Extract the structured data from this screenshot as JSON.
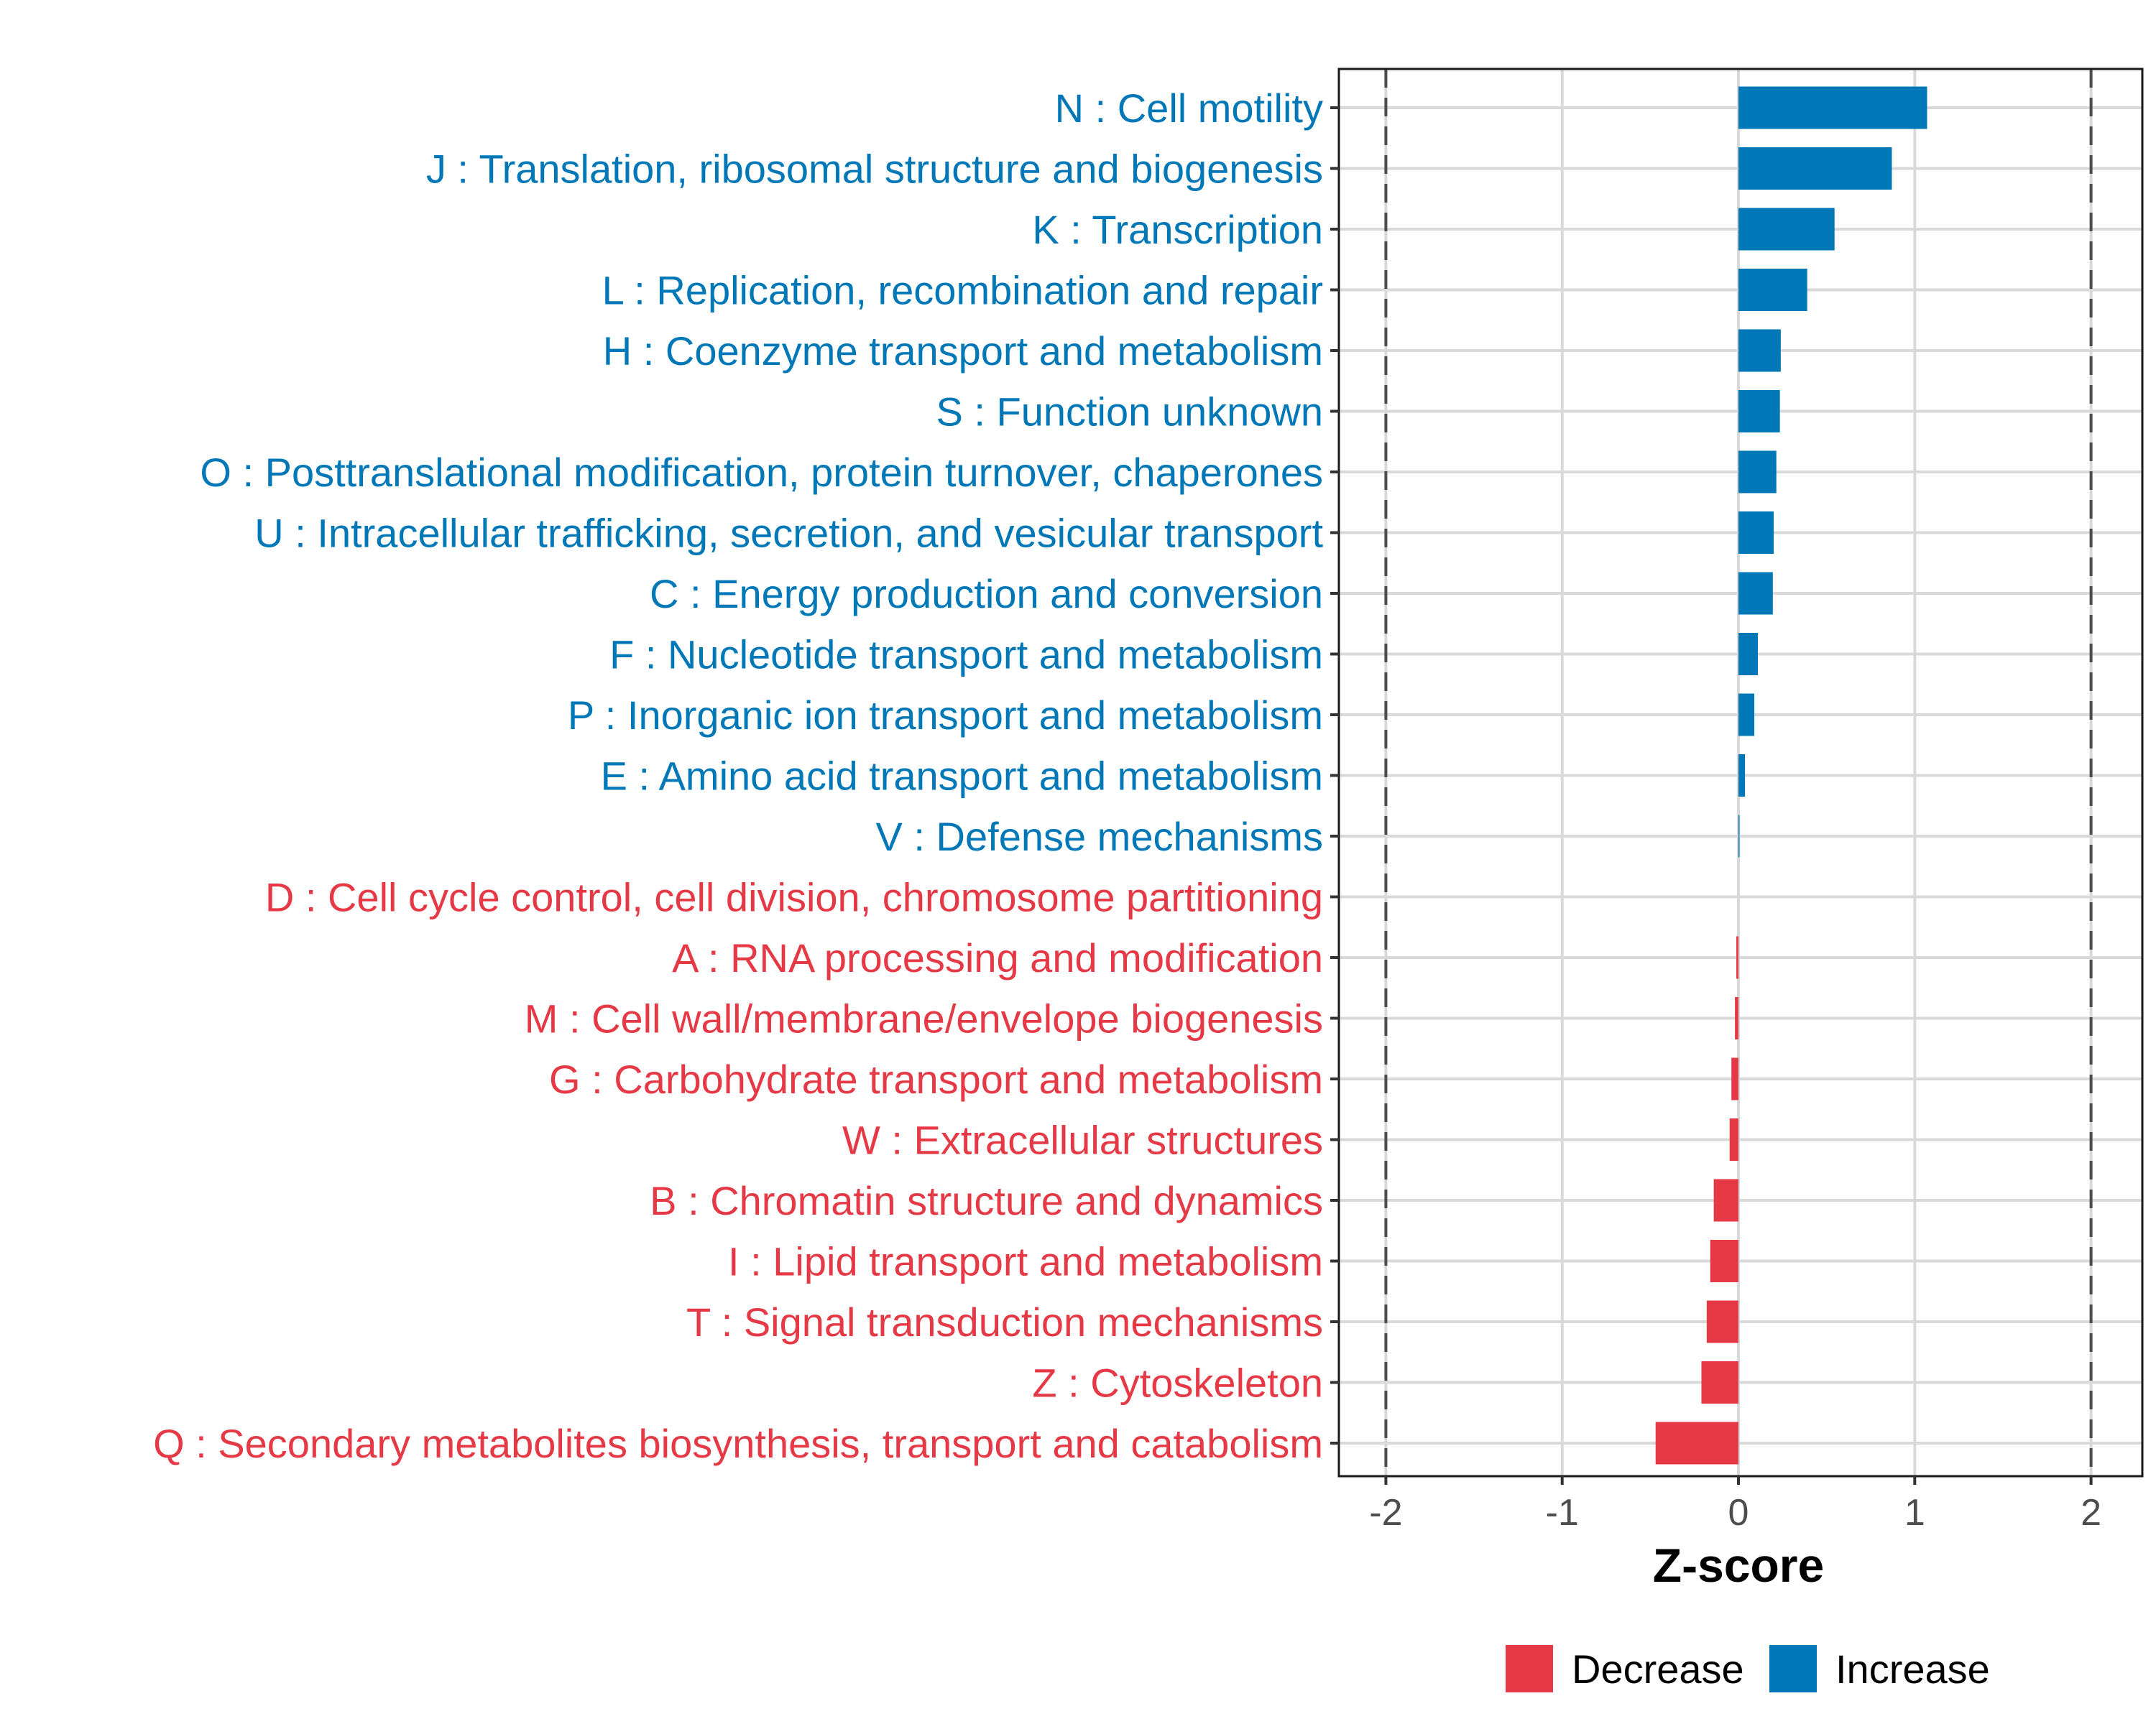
{
  "chart_data": {
    "type": "bar",
    "orientation": "horizontal",
    "title": "",
    "xlabel": "Z-score",
    "ylabel": "",
    "xlim": [
      -2.3,
      2.3
    ],
    "xticks": [
      -2,
      -1,
      0,
      1,
      2
    ],
    "xtick_labels": [
      "-2",
      "-1",
      "0",
      "1",
      "2"
    ],
    "reference_lines": [
      -2,
      2
    ],
    "grid": true,
    "legend": {
      "placement": "bottom",
      "entries": [
        {
          "name": "Decrease",
          "color": "#E63946"
        },
        {
          "name": "Increase",
          "color": "#0077B6"
        }
      ]
    },
    "categories": [
      "N : Cell motility",
      "J : Translation, ribosomal structure and biogenesis",
      "K : Transcription",
      "L : Replication, recombination and repair",
      "H : Coenzyme transport and metabolism",
      "S : Function unknown",
      "O : Posttranslational modification, protein turnover, chaperones",
      "U : Intracellular trafficking, secretion, and vesicular transport",
      "C : Energy production and conversion",
      "F : Nucleotide transport and metabolism",
      "P : Inorganic ion transport and metabolism",
      "E : Amino acid transport and metabolism",
      "V : Defense mechanisms",
      "D : Cell cycle control, cell division, chromosome partitioning",
      "A : RNA processing and modification",
      "M : Cell wall/membrane/envelope biogenesis",
      "G : Carbohydrate transport and metabolism",
      "W : Extracellular structures",
      "B : Chromatin structure and dynamics",
      "I : Lipid transport and metabolism",
      "T : Signal transduction mechanisms",
      "Z : Cytoskeleton",
      "Q : Secondary metabolites biosynthesis, transport and catabolism"
    ],
    "values": [
      1.07,
      0.87,
      0.545,
      0.39,
      0.24,
      0.235,
      0.215,
      0.2,
      0.195,
      0.11,
      0.09,
      0.037,
      0.005,
      0.0,
      -0.012,
      -0.02,
      -0.04,
      -0.05,
      -0.14,
      -0.16,
      -0.18,
      -0.21,
      -0.47
    ],
    "groups": [
      "Increase",
      "Increase",
      "Increase",
      "Increase",
      "Increase",
      "Increase",
      "Increase",
      "Increase",
      "Increase",
      "Increase",
      "Increase",
      "Increase",
      "Increase",
      "Decrease",
      "Decrease",
      "Decrease",
      "Decrease",
      "Decrease",
      "Decrease",
      "Decrease",
      "Decrease",
      "Decrease",
      "Decrease"
    ]
  }
}
